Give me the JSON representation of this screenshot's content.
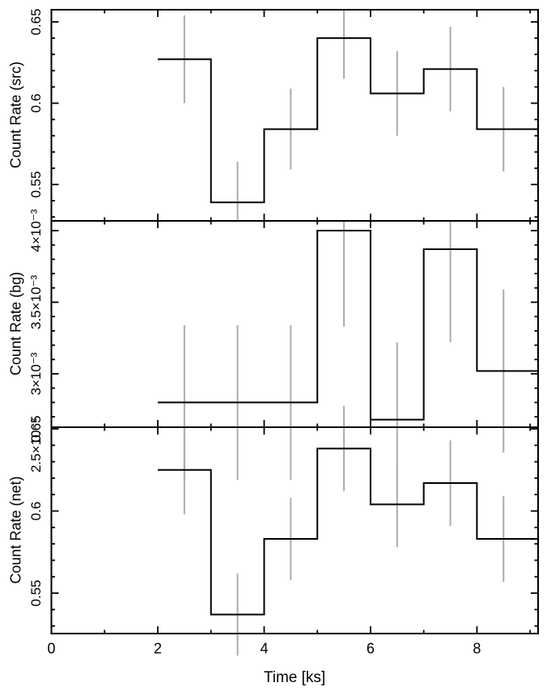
{
  "figure": {
    "kind": "multi-panel light curve",
    "panels": 3
  },
  "axes": {
    "xlabel": "Time [ks]",
    "xlim": [
      0,
      9.15
    ],
    "xticks_major": [
      0,
      2,
      4,
      6,
      8
    ],
    "xtick_labels": [
      "0",
      "2",
      "4",
      "6",
      "8"
    ],
    "xticks_minor": [
      1,
      3,
      5,
      7,
      9
    ]
  },
  "chart_data": [
    {
      "type": "step-histogram-with-errors",
      "name": "src",
      "ylabel": "Count Rate (src)",
      "bin_edges": [
        2,
        3,
        4,
        5,
        6,
        7,
        8,
        9
      ],
      "bin_centers": [
        2.5,
        3.5,
        4.5,
        5.5,
        6.5,
        7.5,
        8.5
      ],
      "values": [
        0.627,
        0.539,
        0.584,
        0.64,
        0.606,
        0.621,
        0.584
      ],
      "errors": [
        0.027,
        0.025,
        0.025,
        0.025,
        0.026,
        0.026,
        0.026
      ],
      "ylim": [
        0.5276,
        0.6575
      ],
      "yticks_major": [
        0.55,
        0.6,
        0.65
      ],
      "ytick_labels": [
        "0.55",
        "0.6",
        "0.65"
      ],
      "ytick_minor_step": 0.01
    },
    {
      "type": "step-histogram-with-errors",
      "name": "bg",
      "ylabel": "Count Rate (bg)",
      "bin_edges": [
        2,
        3,
        4,
        5,
        6,
        7,
        8,
        9
      ],
      "bin_centers": [
        2.5,
        3.5,
        4.5,
        5.5,
        6.5,
        7.5,
        8.5
      ],
      "values": [
        0.0028,
        0.0028,
        0.0028,
        0.004,
        0.00268,
        0.00387,
        0.00302
      ],
      "errors": [
        0.00054,
        0.00054,
        0.00054,
        0.00067,
        0.00054,
        0.00065,
        0.00057
      ],
      "ylim": [
        0.002627,
        0.004068
      ],
      "yticks_major": [
        0.003,
        0.0035,
        0.004
      ],
      "ytick_labels": [
        "3×10⁻³",
        "3.5×10⁻³",
        "4×10⁻³"
      ],
      "ytick_minor_step": 0.0001,
      "ytick_overflow_label": {
        "label": "2.5×10⁻³",
        "value": 0.0025
      }
    },
    {
      "type": "step-histogram-with-errors",
      "name": "net",
      "ylabel": "Count Rate (net)",
      "bin_edges": [
        2,
        3,
        4,
        5,
        6,
        7,
        8,
        9
      ],
      "bin_centers": [
        2.5,
        3.5,
        4.5,
        5.5,
        6.5,
        7.5,
        8.5
      ],
      "values": [
        0.625,
        0.537,
        0.583,
        0.638,
        0.604,
        0.617,
        0.583
      ],
      "errors": [
        0.027,
        0.025,
        0.025,
        0.026,
        0.026,
        0.026,
        0.026
      ],
      "ylim": [
        0.5254,
        0.651
      ],
      "yticks_major": [
        0.55,
        0.6,
        0.65
      ],
      "ytick_labels": [
        "0.55",
        "0.6",
        "0.65"
      ],
      "ytick_minor_step": 0.01
    }
  ],
  "colors": {
    "histogram": "#000000",
    "error_bar": "#ababab",
    "frame": "#000000",
    "background": "#ffffff",
    "text": "#000000"
  }
}
